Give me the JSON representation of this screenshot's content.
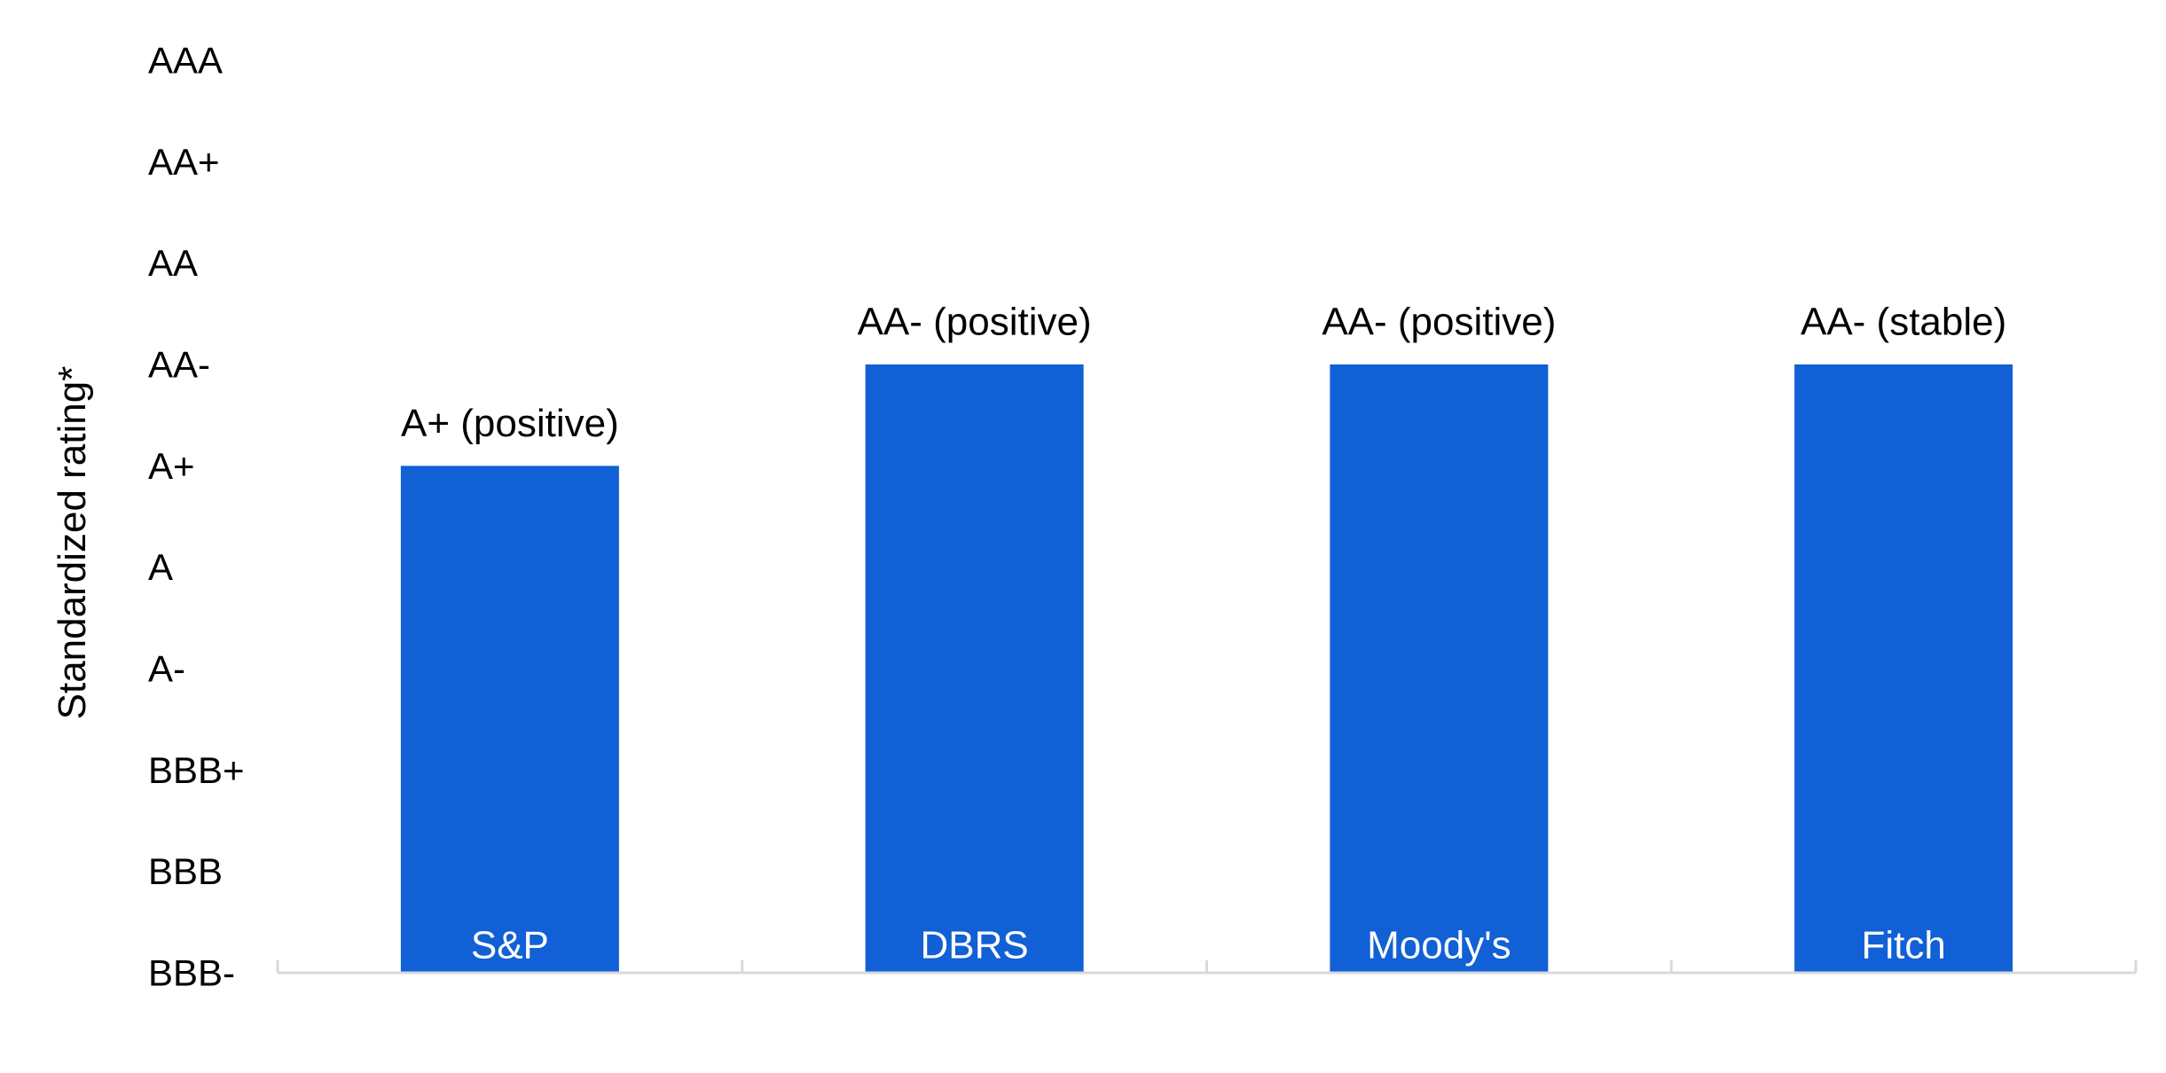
{
  "chart_data": {
    "type": "bar",
    "ylabel": "Standardized rating*",
    "xlabel": "",
    "y_scale": [
      "BBB-",
      "BBB",
      "BBB+",
      "A-",
      "A",
      "A+",
      "AA-",
      "AA",
      "AA+",
      "AAA"
    ],
    "ylim": [
      0,
      9
    ],
    "categories": [
      "S&P",
      "DBRS",
      "Moody's",
      "Fitch"
    ],
    "values": [
      5,
      6,
      6,
      6
    ],
    "data_labels": [
      "A+ (positive)",
      "AA- (positive)",
      "AA- (positive)",
      "AA- (stable)"
    ],
    "category_labels_inside_bars": true,
    "grid": false,
    "legend": "none",
    "colors": {
      "bar": "#1160D6",
      "category_label": "#FFFFFF",
      "axis_line": "#D9D9D9",
      "text": "#000000"
    }
  }
}
